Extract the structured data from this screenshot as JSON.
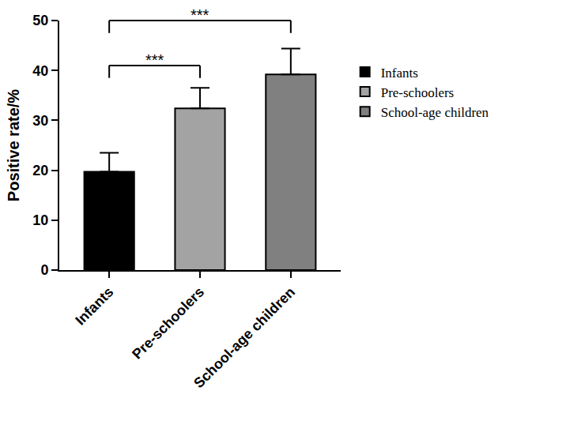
{
  "chart_data": {
    "type": "bar",
    "categories": [
      "Infants",
      "Pre-schoolers",
      "School-age children"
    ],
    "values": [
      19.7,
      32.4,
      39.2
    ],
    "errors": [
      3.8,
      4.1,
      5.2
    ],
    "colors": [
      "#000000",
      "#a3a3a3",
      "#808080"
    ],
    "ylabel": "Positive rate/%",
    "ylim": [
      0,
      50
    ],
    "yticks": [
      0,
      10,
      20,
      30,
      40,
      50
    ],
    "grid": false,
    "legend": "right",
    "significance": [
      {
        "from": "Infants",
        "to": "Pre-schoolers",
        "y": 41,
        "text": "***"
      },
      {
        "from": "Infants",
        "to": "School-age children",
        "y": 50,
        "text": "***"
      }
    ]
  }
}
